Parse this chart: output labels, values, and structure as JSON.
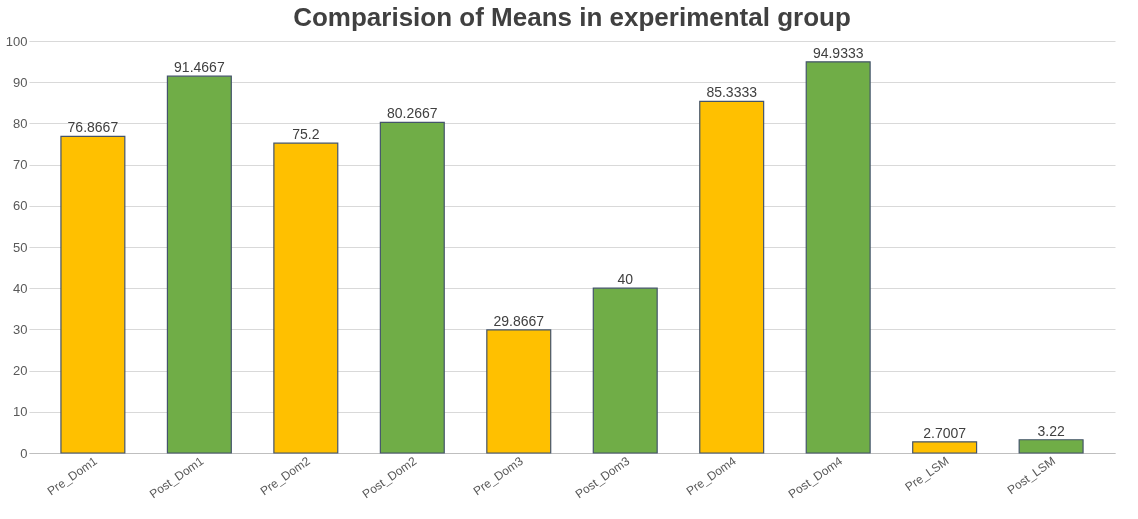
{
  "chart_data": {
    "type": "bar",
    "title": "Comparision of Means in experimental group",
    "categories": [
      "Pre_Dom1",
      "Post_Dom1",
      "Pre_Dom2",
      "Post_Dom2",
      "Pre_Dom3",
      "Post_Dom3",
      "Pre_Dom4",
      "Post_Dom4",
      "Pre_LSM",
      "Post_LSM"
    ],
    "values": [
      76.8667,
      91.4667,
      75.2,
      80.2667,
      29.8667,
      40,
      85.3333,
      94.9333,
      2.7007,
      3.22
    ],
    "colors": [
      "#ffc000",
      "#70ad47",
      "#ffc000",
      "#70ad47",
      "#ffc000",
      "#70ad47",
      "#ffc000",
      "#70ad47",
      "#ffc000",
      "#70ad47"
    ],
    "ylim": [
      0,
      100
    ],
    "yticks": [
      0,
      10,
      20,
      30,
      40,
      50,
      60,
      70,
      80,
      90,
      100
    ],
    "grid": "y",
    "data_labels": true
  }
}
